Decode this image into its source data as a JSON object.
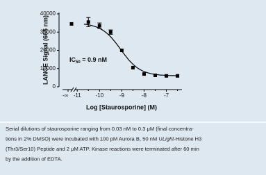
{
  "chart_data": {
    "type": "dose-response",
    "ylabel": "LANCE Signal (665 nm)",
    "xlabel": "Log [Staurosporine] (M)",
    "annotation": {
      "main": "IC",
      "sub": "50",
      "rest": " = 0.9 nM"
    },
    "ylim": [
      0,
      40000
    ],
    "yticks": [
      0,
      10000,
      20000,
      30000,
      40000
    ],
    "xlim": [
      -11.1,
      -6.3
    ],
    "xticks": [
      -11,
      -10,
      -9,
      -8,
      -7
    ],
    "xminor_ticks": [
      -10.5,
      -9.5,
      -8.5,
      -7.5,
      -6.5
    ],
    "zero_point": {
      "label": "-∞",
      "value": 34500
    },
    "x": [
      -10.5,
      -10,
      -9.5,
      -9,
      -8.5,
      -8,
      -7.5,
      -7,
      -6.5
    ],
    "values": [
      35500,
      33500,
      30000,
      20000,
      10500,
      7000,
      6300,
      6000,
      6000
    ],
    "errors": [
      2500,
      1500,
      1200,
      null,
      null,
      null,
      null,
      null,
      null
    ],
    "color": "#000000",
    "fit": {
      "top": 35000,
      "bottom": 6000,
      "log_ic50": -9.05,
      "hill": 1
    }
  },
  "caption": {
    "lines": [
      [
        "Serial dilutions of staurosporine ranging from 0.03 nM to 0.3 μM (final concentra-"
      ],
      [
        "tions in 2% DMSO) were incubated with 100 pM Aurora B, 50 nM U",
        "Light",
        "-Histone H3"
      ],
      [
        "(Thr3/Ser10) Peptide and 2 μM ATP. Kinase reactions were terminated after 60 min"
      ],
      [
        "by the addition of EDTA."
      ]
    ]
  }
}
